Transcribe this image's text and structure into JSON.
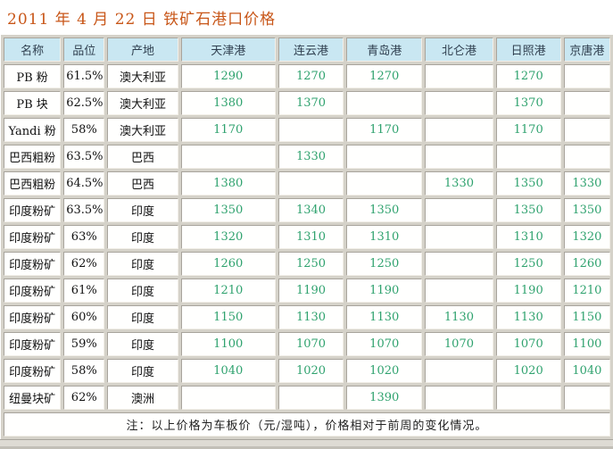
{
  "title": "2011 年 4 月 22 日  铁矿石港口价格",
  "table": {
    "headers": [
      "名称",
      "品位",
      "产地",
      "天津港",
      "连云港",
      "青岛港",
      "北仑港",
      "日照港",
      "京唐港"
    ],
    "header_names": [
      "name",
      "grade",
      "origin",
      "tianjin",
      "lianyungang",
      "qingdao",
      "beilun",
      "rizhao",
      "jingtang"
    ],
    "rows": [
      [
        "PB 粉",
        "61.5%",
        "澳大利亚",
        "1290",
        "1270",
        "1270",
        "",
        "1270",
        ""
      ],
      [
        "PB 块",
        "62.5%",
        "澳大利亚",
        "1380",
        "1370",
        "",
        "",
        "1370",
        ""
      ],
      [
        "Yandi 粉",
        "58%",
        "澳大利亚",
        "1170",
        "",
        "1170",
        "",
        "1170",
        ""
      ],
      [
        "巴西粗粉",
        "63.5%",
        "巴西",
        "",
        "1330",
        "",
        "",
        "",
        ""
      ],
      [
        "巴西粗粉",
        "64.5%",
        "巴西",
        "1380",
        "",
        "",
        "1330",
        "1350",
        "1330"
      ],
      [
        "印度粉矿",
        "63.5%",
        "印度",
        "1350",
        "1340",
        "1350",
        "",
        "1350",
        "1350"
      ],
      [
        "印度粉矿",
        "63%",
        "印度",
        "1320",
        "1310",
        "1310",
        "",
        "1310",
        "1320"
      ],
      [
        "印度粉矿",
        "62%",
        "印度",
        "1260",
        "1250",
        "1250",
        "",
        "1250",
        "1260"
      ],
      [
        "印度粉矿",
        "61%",
        "印度",
        "1210",
        "1190",
        "1190",
        "",
        "1190",
        "1210"
      ],
      [
        "印度粉矿",
        "60%",
        "印度",
        "1150",
        "1130",
        "1130",
        "1130",
        "1130",
        "1150"
      ],
      [
        "印度粉矿",
        "59%",
        "印度",
        "1100",
        "1070",
        "1070",
        "1070",
        "1070",
        "1100"
      ],
      [
        "印度粉矿",
        "58%",
        "印度",
        "1040",
        "1020",
        "1020",
        "",
        "1020",
        "1040"
      ],
      [
        "纽曼块矿",
        "62%",
        "澳洲",
        "",
        "",
        "1390",
        "",
        "",
        ""
      ]
    ],
    "note": "注：以上价格为车板价（元/湿吨），价格相对于前周的变化情况。"
  },
  "colors": {
    "title_text": "#c85618",
    "header_bg": "#c9e7f2",
    "header_text": "#2f3f4f",
    "price_text": "#2fa26e",
    "table_gap_bg": "#d5d2c9",
    "cell_bg": "#fffffe"
  }
}
